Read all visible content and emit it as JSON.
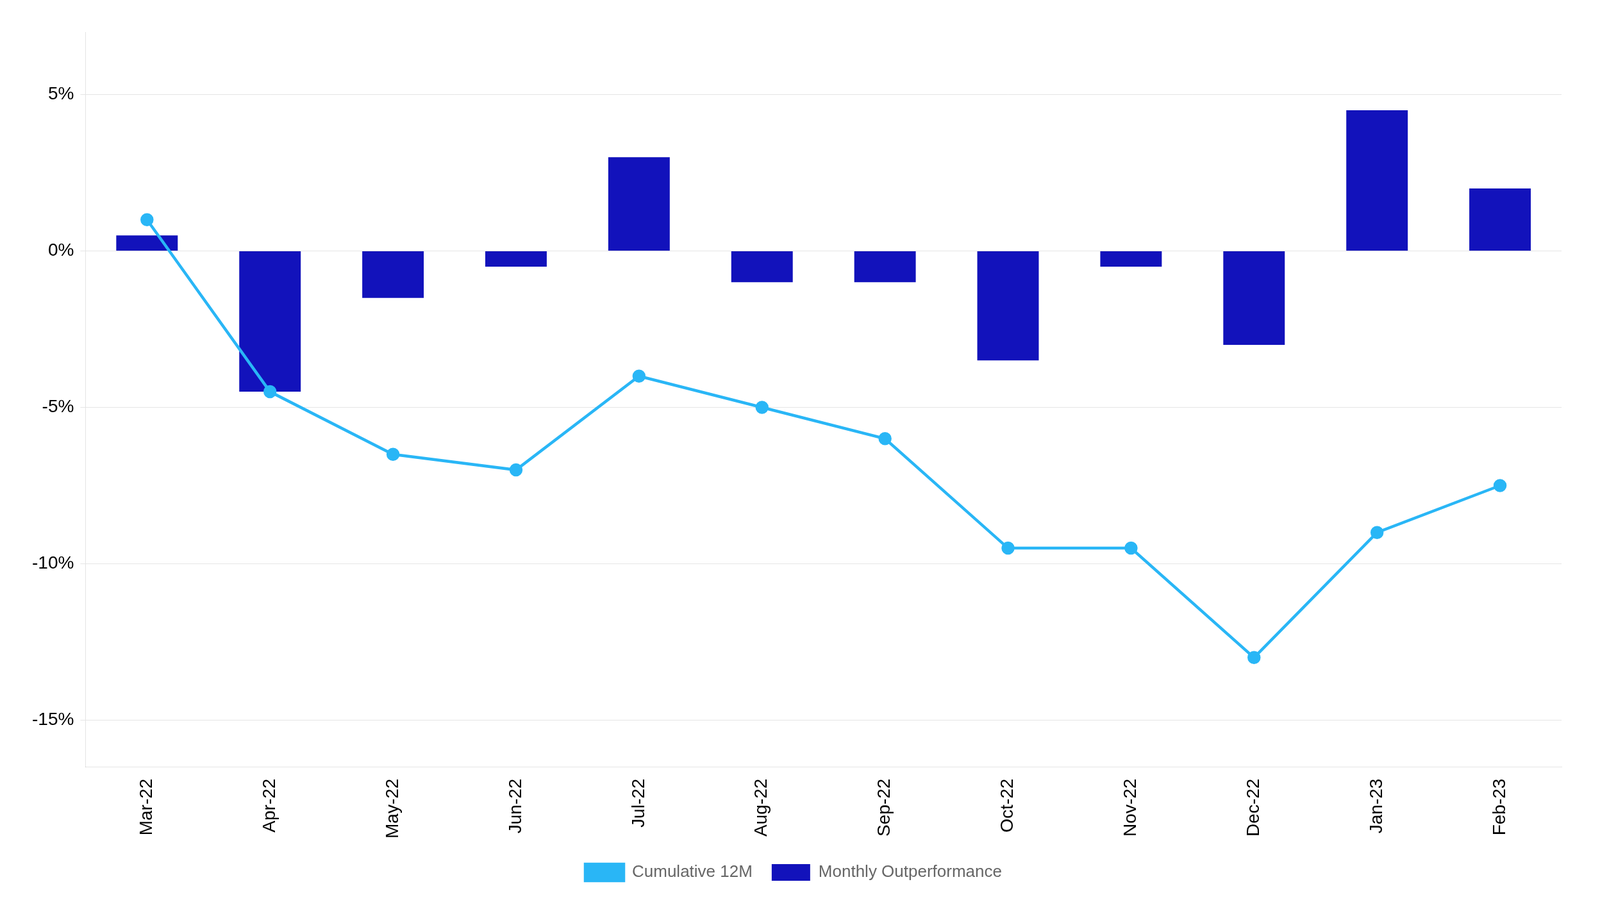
{
  "chart_data": {
    "type": "bar",
    "categories": [
      "Mar-22",
      "Apr-22",
      "May-22",
      "Jun-22",
      "Jul-22",
      "Aug-22",
      "Sep-22",
      "Oct-22",
      "Nov-22",
      "Dec-22",
      "Jan-23",
      "Feb-23"
    ],
    "series": [
      {
        "name": "Monthly Outperformance",
        "type": "bar",
        "color": "#1212bb",
        "values": [
          0.5,
          -4.5,
          -1.5,
          -0.5,
          3.0,
          -1.0,
          -1.0,
          -3.5,
          -0.5,
          -3.0,
          4.5,
          2.0
        ]
      },
      {
        "name": "Cumulative 12M",
        "type": "line",
        "color": "#29b6f6",
        "marker": "circle",
        "values": [
          1.0,
          -4.5,
          -6.5,
          -7.0,
          -4.0,
          -5.0,
          -6.0,
          -9.5,
          -9.5,
          -13.0,
          -9.0,
          -7.5
        ]
      }
    ],
    "ylim": [
      -16.5,
      7
    ],
    "yticks": [
      {
        "value": -15,
        "label": "-15%"
      },
      {
        "value": -10,
        "label": "-10%"
      },
      {
        "value": -5,
        "label": "-5%"
      },
      {
        "value": 0,
        "label": "0%"
      },
      {
        "value": 5,
        "label": "5%"
      }
    ],
    "grid": true,
    "legend": "bottom"
  }
}
